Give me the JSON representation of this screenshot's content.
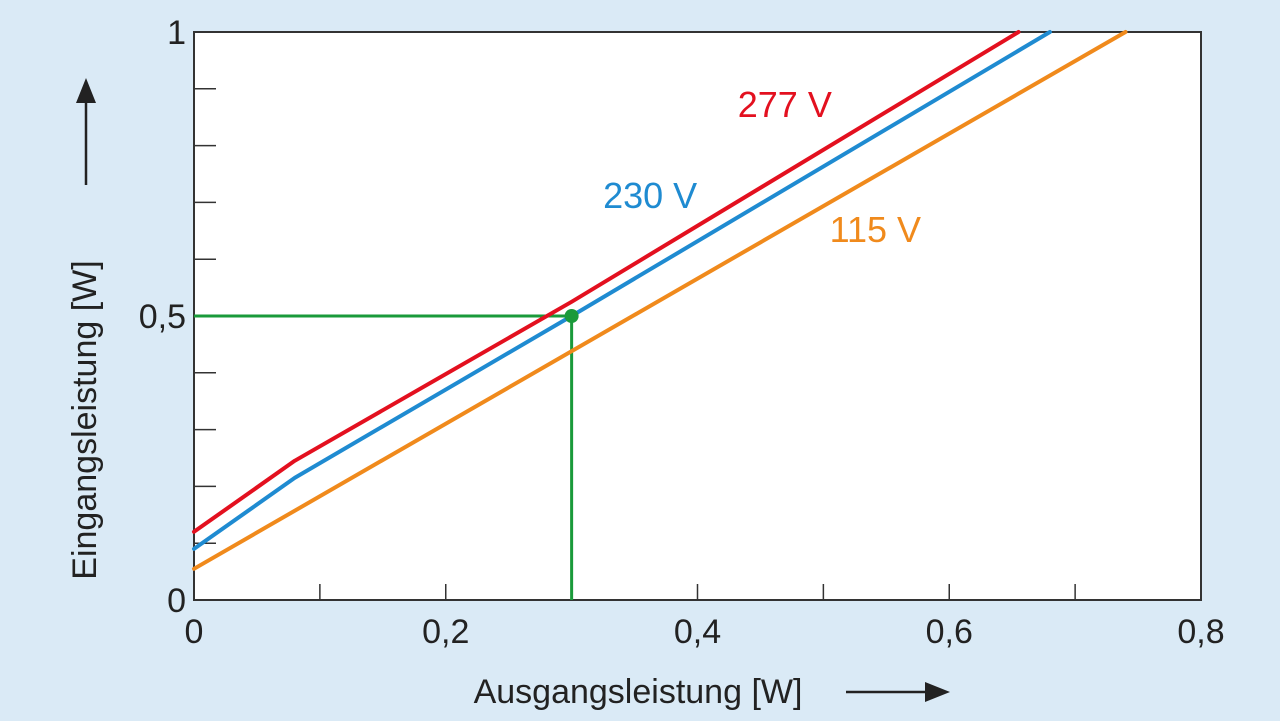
{
  "chart_data": {
    "type": "line",
    "title": "",
    "xlabel": "Ausgangsleistung [W]",
    "ylabel": "Eingangsleistung [W]",
    "xlim": [
      0,
      0.8
    ],
    "ylim": [
      0,
      1
    ],
    "x_ticks": [
      "0",
      "0,2",
      "0,4",
      "0,6",
      "0,8"
    ],
    "y_ticks": [
      "0",
      "0,5",
      "1"
    ],
    "x_tick_values": [
      0,
      0.2,
      0.4,
      0.6,
      0.8
    ],
    "y_tick_values": [
      0,
      0.5,
      1
    ],
    "x_minor_step": 0.1,
    "y_minor_step": 0.1,
    "grid": false,
    "series": [
      {
        "name": "277 V",
        "color": "#e3101f",
        "points": [
          [
            0,
            0.12
          ],
          [
            0.08,
            0.245
          ],
          [
            0.3,
            0.525
          ],
          [
            0.655,
            1.0
          ]
        ]
      },
      {
        "name": "230 V",
        "color": "#1f8bd1",
        "points": [
          [
            0,
            0.09
          ],
          [
            0.08,
            0.215
          ],
          [
            0.3,
            0.5
          ],
          [
            0.68,
            1.0
          ]
        ]
      },
      {
        "name": "115 V",
        "color": "#f08a1c",
        "points": [
          [
            0,
            0.055
          ],
          [
            0.74,
            1.0
          ]
        ]
      }
    ],
    "annotations": {
      "marker": {
        "x": 0.3,
        "y": 0.5,
        "color": "#1a9a3a"
      }
    }
  }
}
